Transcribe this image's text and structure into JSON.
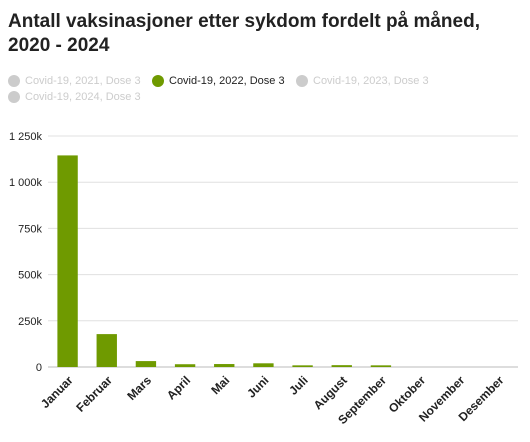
{
  "title": "Antall vaksinasjoner etter sykdom fordelt på måned, 2020 - 2024",
  "legend": [
    {
      "label": "Covid-19, 2021, Dose 3",
      "active": false
    },
    {
      "label": "Covid-19, 2022, Dose 3",
      "active": true
    },
    {
      "label": "Covid-19, 2023, Dose 3",
      "active": false
    },
    {
      "label": "Covid-19, 2024, Dose 3",
      "active": false
    }
  ],
  "colors": {
    "active_series": "#6f9a00",
    "inactive": "#cccccc",
    "grid": "#e0e0e0",
    "axis_text": "#222222"
  },
  "chart_data": {
    "type": "bar",
    "title": "Antall vaksinasjoner etter sykdom fordelt på måned, 2020 - 2024",
    "categories": [
      "Januar",
      "Februar",
      "Mars",
      "April",
      "Mai",
      "Juni",
      "Juli",
      "August",
      "September",
      "Oktober",
      "November",
      "Desember"
    ],
    "series": [
      {
        "name": "Covid-19, 2022, Dose 3",
        "values": [
          1145000,
          178000,
          32000,
          15000,
          16000,
          20000,
          9000,
          10000,
          9000,
          0,
          0,
          0
        ]
      }
    ],
    "ylim": [
      0,
      1250000
    ],
    "yticks": [
      0,
      250000,
      500000,
      750000,
      1000000,
      1250000
    ],
    "ytick_labels": [
      "0",
      "250k",
      "500k",
      "750k",
      "1 000k",
      "1 250k"
    ],
    "grid": true,
    "legend_position": "top-left"
  }
}
